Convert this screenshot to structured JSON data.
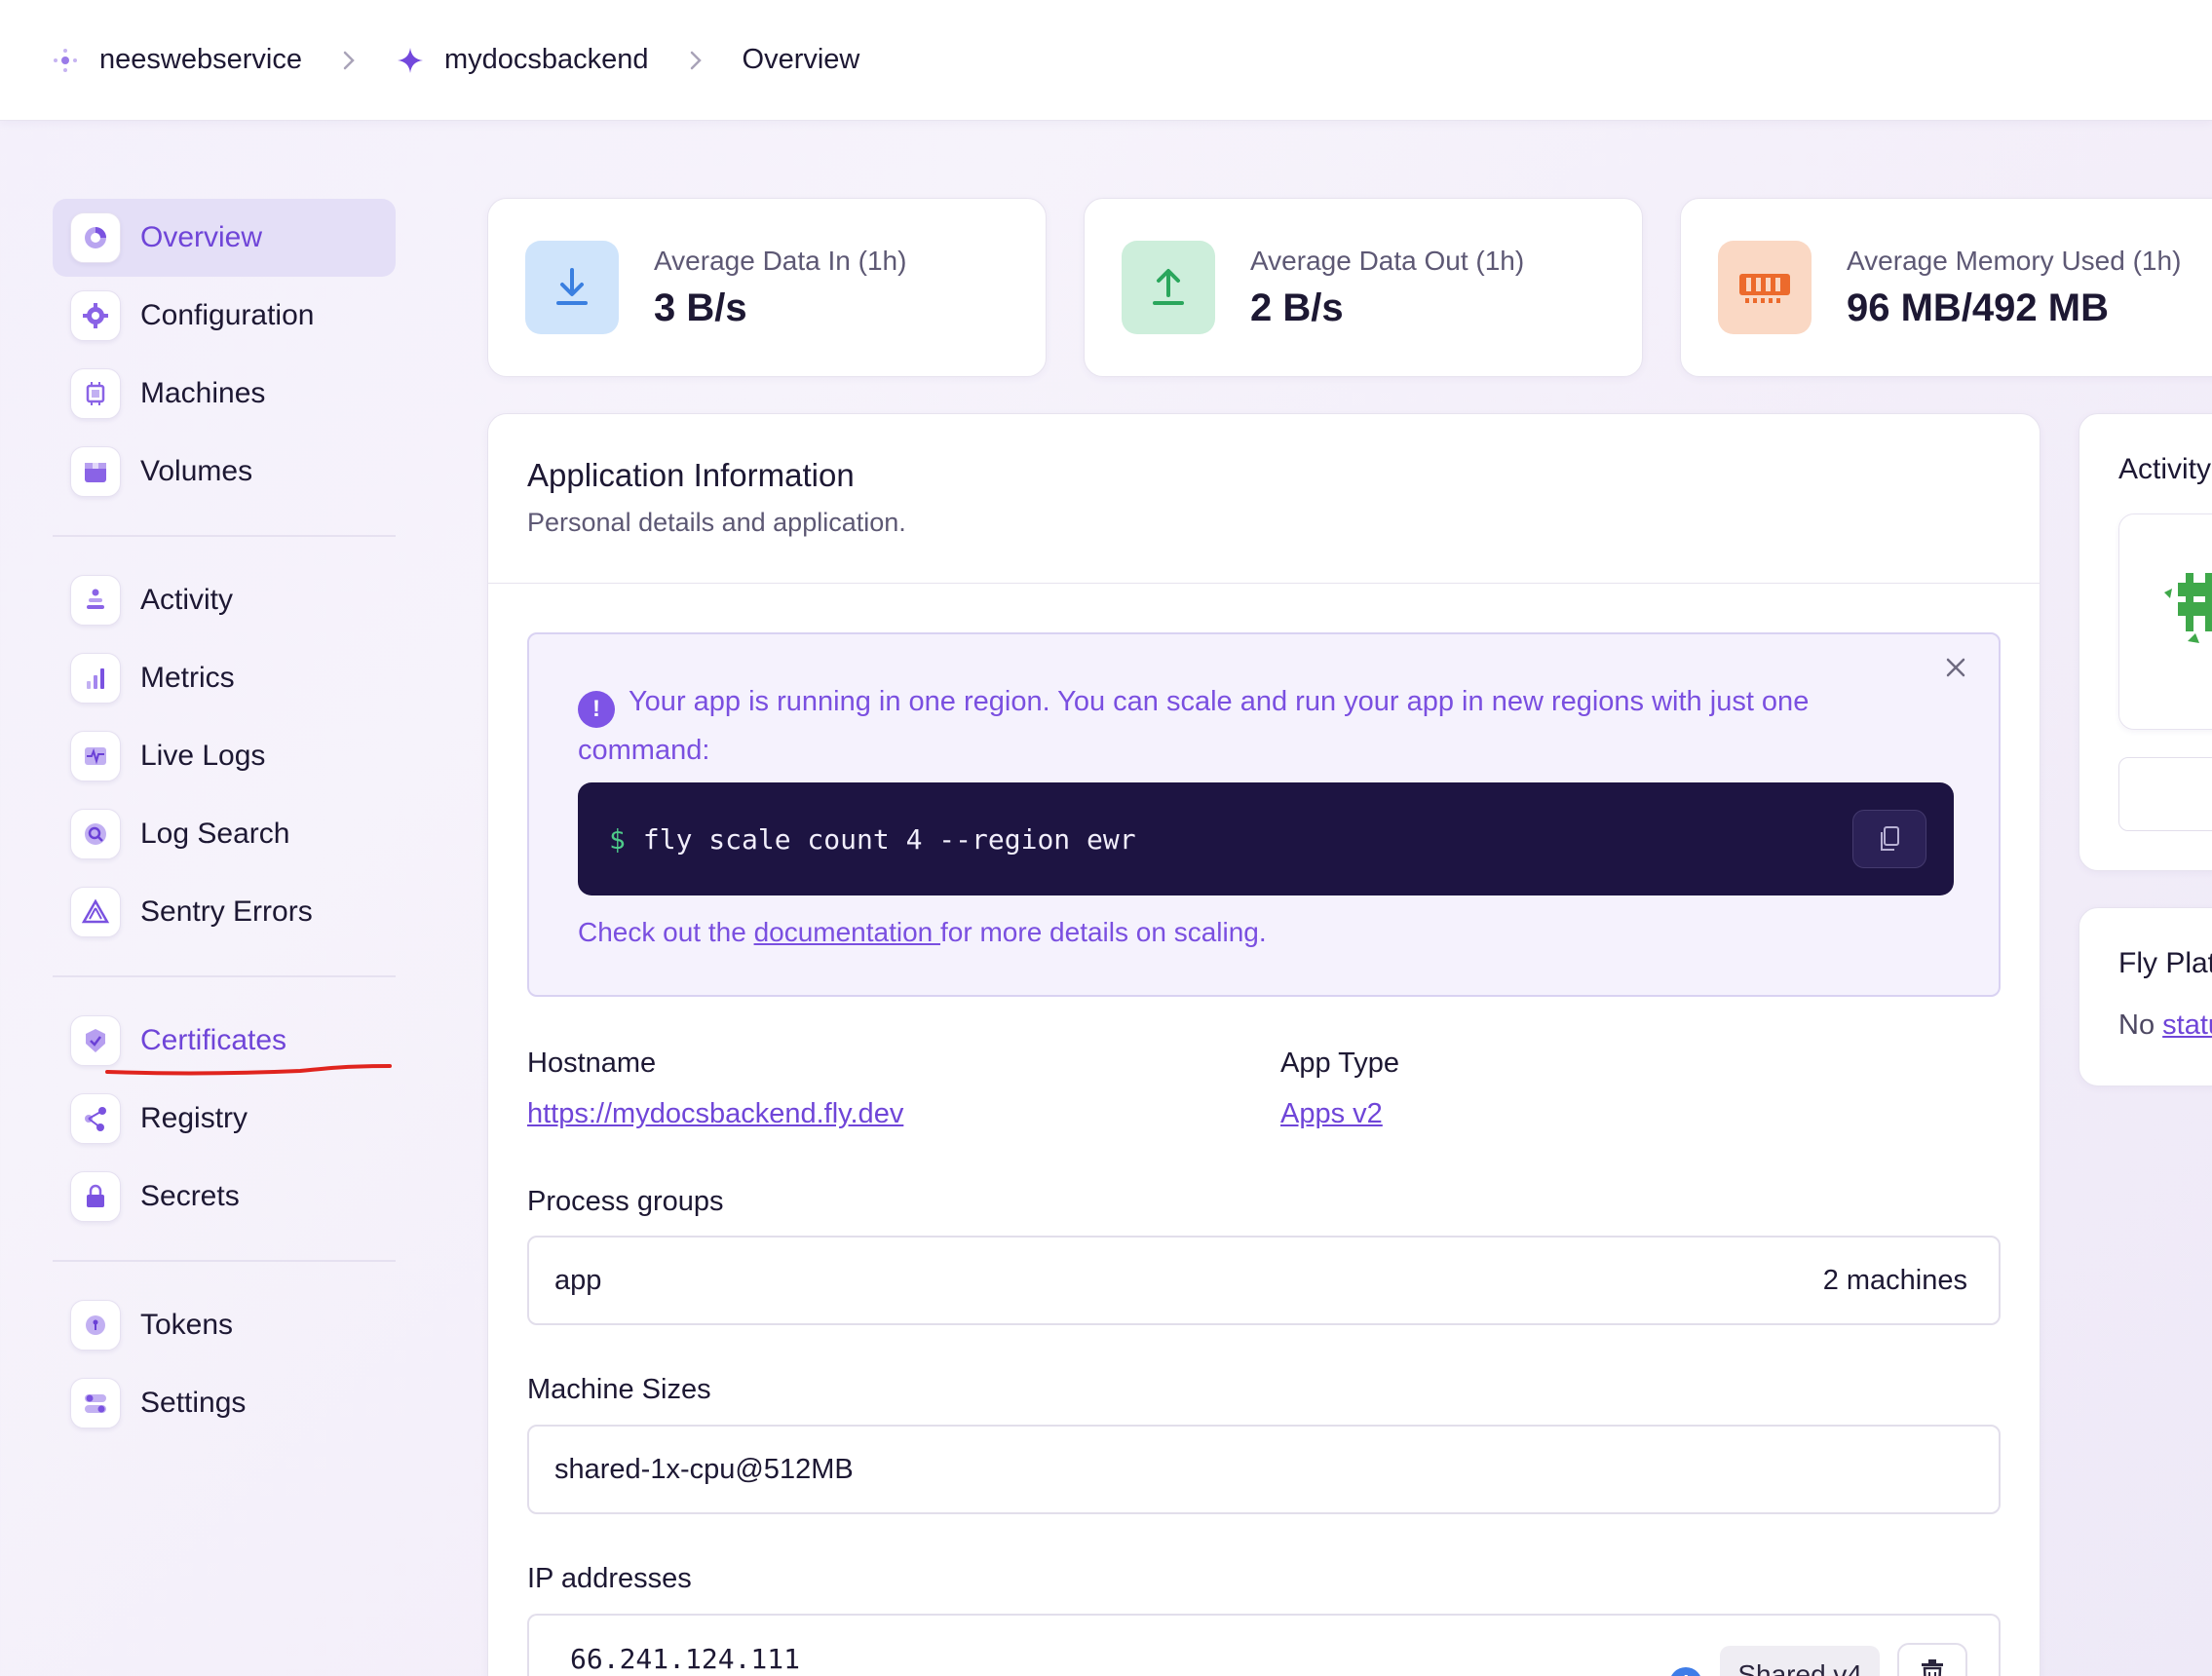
{
  "breadcrumb": {
    "org": "neeswebservice",
    "app": "mydocsbackend",
    "page": "Overview"
  },
  "sidebar": {
    "groups": [
      [
        {
          "label": "Overview",
          "icon": "overview-icon",
          "active": true
        },
        {
          "label": "Configuration",
          "icon": "gear-icon"
        },
        {
          "label": "Machines",
          "icon": "chip-icon"
        },
        {
          "label": "Volumes",
          "icon": "box-icon"
        }
      ],
      [
        {
          "label": "Activity",
          "icon": "activity-icon"
        },
        {
          "label": "Metrics",
          "icon": "bar-chart-icon"
        },
        {
          "label": "Live Logs",
          "icon": "pulse-icon"
        },
        {
          "label": "Log Search",
          "icon": "search-icon"
        },
        {
          "label": "Sentry Errors",
          "icon": "sentry-icon"
        }
      ],
      [
        {
          "label": "Certificates",
          "icon": "badge-check-icon"
        },
        {
          "label": "Registry",
          "icon": "share-icon"
        },
        {
          "label": "Secrets",
          "icon": "lock-icon"
        }
      ],
      [
        {
          "label": "Tokens",
          "icon": "token-icon"
        },
        {
          "label": "Settings",
          "icon": "toggles-icon"
        }
      ]
    ]
  },
  "stats": [
    {
      "label": "Average Data In (1h)",
      "value": "3 B/s",
      "icon": "download-icon",
      "color": "#cfe4fb"
    },
    {
      "label": "Average Data Out (1h)",
      "value": "2 B/s",
      "icon": "upload-icon",
      "color": "#cdeedb"
    },
    {
      "label": "Average Memory Used (1h)",
      "value": "96 MB/492 MB",
      "icon": "memory-icon",
      "color": "#fad8c4"
    }
  ],
  "app_info": {
    "title": "Application Information",
    "subtitle": "Personal details and application.",
    "alert": {
      "text": "Your app is running in one region. You can scale and run your app in new regions with just one command:",
      "command_prompt": "$",
      "command": "fly scale count 4 --region ewr",
      "footer_before": "Check out the ",
      "footer_link": "documentation ",
      "footer_after": "for more details on scaling."
    },
    "hostname_label": "Hostname",
    "hostname_value": "https://mydocsbackend.fly.dev",
    "app_type_label": "App Type",
    "app_type_value": "Apps v2",
    "process_groups_label": "Process groups",
    "process_group_name": "app",
    "process_group_count": "2 machines",
    "machine_sizes_label": "Machine Sizes",
    "machine_size": "shared-1x-cpu@512MB",
    "ip_label": "IP addresses",
    "ip_value": "66.241.124.111",
    "ip_badge": "Shared v4"
  },
  "right_panel": {
    "activity_title": "Activity",
    "platform_title": "Fly Platform",
    "status_prefix": "No ",
    "status_link": "status"
  },
  "colors": {
    "accent": "#6f45d8",
    "code_bg": "#1d1442",
    "alert_bg": "#f5f2fd"
  }
}
